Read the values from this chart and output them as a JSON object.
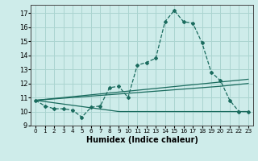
{
  "xlabel": "Humidex (Indice chaleur)",
  "background_color": "#ceecea",
  "grid_color": "#aad4d0",
  "line_color": "#1a6b5e",
  "xlim": [
    -0.5,
    23.5
  ],
  "ylim": [
    9,
    17.6
  ],
  "xticks": [
    0,
    1,
    2,
    3,
    4,
    5,
    6,
    7,
    8,
    9,
    10,
    11,
    12,
    13,
    14,
    15,
    16,
    17,
    18,
    19,
    20,
    21,
    22,
    23
  ],
  "yticks": [
    9,
    10,
    11,
    12,
    13,
    14,
    15,
    16,
    17
  ],
  "series1_x": [
    0,
    1,
    2,
    3,
    4,
    5,
    6,
    7,
    8,
    9,
    10,
    11,
    12,
    13,
    14,
    15,
    16,
    17,
    18,
    19,
    20,
    21,
    22,
    23
  ],
  "series1_y": [
    10.8,
    10.4,
    10.2,
    10.2,
    10.1,
    9.6,
    10.3,
    10.4,
    11.7,
    11.8,
    11.0,
    13.3,
    13.5,
    13.8,
    16.4,
    17.2,
    16.4,
    16.3,
    14.9,
    12.8,
    12.2,
    10.8,
    10.0,
    10.0
  ],
  "series2_x": [
    0,
    23
  ],
  "series2_y": [
    10.8,
    12.3
  ],
  "series3_x": [
    0,
    20,
    23
  ],
  "series3_y": [
    10.8,
    11.8,
    12.0
  ],
  "series4_x": [
    0,
    9,
    23
  ],
  "series4_y": [
    10.8,
    10.0,
    10.0
  ]
}
